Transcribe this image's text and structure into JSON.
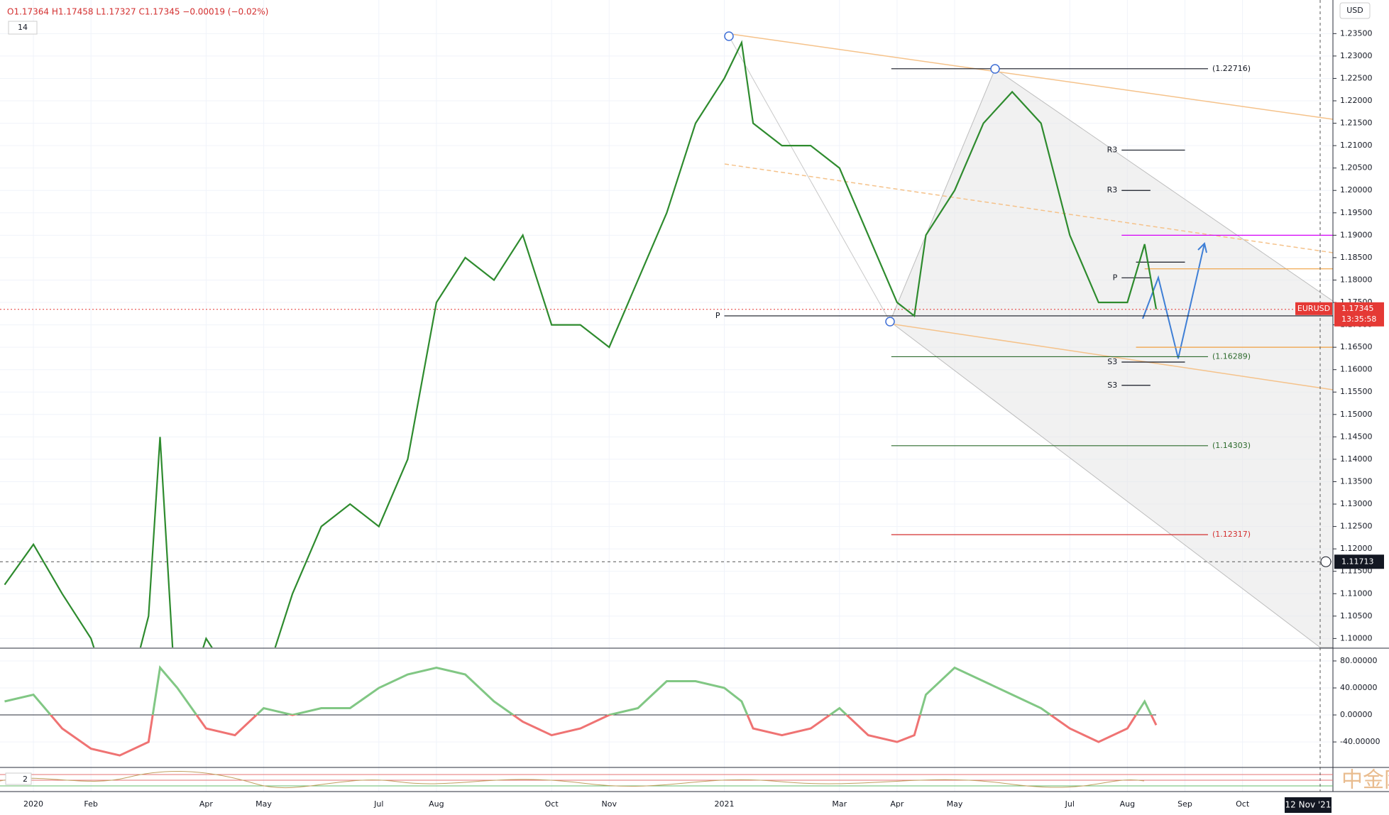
{
  "header": {
    "ohlc": "O1.17364  H1.17458  L1.17327  C1.17345  −0.00019 (−0.02%)",
    "period": "14",
    "currency": "USD",
    "indicator2": "2",
    "crosshair_date": "12 Nov '21",
    "watermark": "中金网"
  },
  "chart_data": [
    {
      "type": "line",
      "symbol": "EURUSD",
      "x": [
        -0.5,
        0,
        0.5,
        1,
        1.5,
        2,
        2.2,
        2.5,
        3,
        3.5,
        4,
        4.5,
        5,
        5.5,
        6,
        6.5,
        7,
        7.5,
        8,
        8.5,
        9,
        9.5,
        10,
        10.5,
        11,
        11.5,
        12,
        12.3,
        12.5,
        13,
        13.5,
        14,
        14.5,
        15,
        15.3,
        15.5,
        16,
        16.5,
        17,
        17.5,
        18,
        18.5,
        19,
        19.3,
        19.5
      ],
      "series": [
        {
          "color": "#2e8b2e",
          "values": [
            1.112,
            1.121,
            1.11,
            1.1,
            1.08,
            1.105,
            1.145,
            1.08,
            1.1,
            1.09,
            1.09,
            1.11,
            1.125,
            1.13,
            1.125,
            1.14,
            1.175,
            1.185,
            1.18,
            1.19,
            1.17,
            1.17,
            1.165,
            1.18,
            1.195,
            1.215,
            1.225,
            1.233,
            1.215,
            1.21,
            1.21,
            1.205,
            1.19,
            1.175,
            1.172,
            1.19,
            1.2,
            1.215,
            1.222,
            1.215,
            1.19,
            1.175,
            1.175,
            1.188,
            1.1735
          ]
        }
      ],
      "xlim": [
        -0.58,
        22.57
      ],
      "xticks": [
        {
          "value": 0,
          "label": "2020"
        },
        {
          "value": 1,
          "label": "Feb"
        },
        {
          "value": 3,
          "label": "Apr"
        },
        {
          "value": 4,
          "label": "May"
        },
        {
          "value": 6,
          "label": "Jul"
        },
        {
          "value": 7,
          "label": "Aug"
        },
        {
          "value": 9,
          "label": "Oct"
        },
        {
          "value": 10,
          "label": "Nov"
        },
        {
          "value": 12,
          "label": "2021"
        },
        {
          "value": 14,
          "label": "Mar"
        },
        {
          "value": 15,
          "label": "Apr"
        },
        {
          "value": 16,
          "label": "May"
        },
        {
          "value": 18,
          "label": "Jul"
        },
        {
          "value": 19,
          "label": "Aug"
        },
        {
          "value": 20,
          "label": "Sep"
        },
        {
          "value": 21,
          "label": "Oct"
        }
      ],
      "ylim": [
        1.098,
        1.2425
      ],
      "yticks": [
        {
          "value": 1.1,
          "label": "1.10000"
        },
        {
          "value": 1.105,
          "label": "1.10500"
        },
        {
          "value": 1.11,
          "label": "1.11000"
        },
        {
          "value": 1.115,
          "label": "1.11500"
        },
        {
          "value": 1.12,
          "label": "1.12000"
        },
        {
          "value": 1.125,
          "label": "1.12500"
        },
        {
          "value": 1.13,
          "label": "1.13000"
        },
        {
          "value": 1.135,
          "label": "1.13500"
        },
        {
          "value": 1.14,
          "label": "1.14000"
        },
        {
          "value": 1.145,
          "label": "1.14500"
        },
        {
          "value": 1.15,
          "label": "1.15000"
        },
        {
          "value": 1.155,
          "label": "1.15500"
        },
        {
          "value": 1.16,
          "label": "1.16000"
        },
        {
          "value": 1.165,
          "label": "1.16500"
        },
        {
          "value": 1.17,
          "label": "1.17000"
        },
        {
          "value": 1.175,
          "label": "1.17500"
        },
        {
          "value": 1.18,
          "label": "1.18000"
        },
        {
          "value": 1.185,
          "label": "1.18500"
        },
        {
          "value": 1.19,
          "label": "1.19000"
        },
        {
          "value": 1.195,
          "label": "1.19500"
        },
        {
          "value": 1.2,
          "label": "1.20000"
        },
        {
          "value": 1.205,
          "label": "1.20500"
        },
        {
          "value": 1.21,
          "label": "1.21000"
        },
        {
          "value": 1.215,
          "label": "1.21500"
        },
        {
          "value": 1.22,
          "label": "1.22000"
        },
        {
          "value": 1.225,
          "label": "1.22500"
        },
        {
          "value": 1.23,
          "label": "1.23000"
        },
        {
          "value": 1.235,
          "label": "1.23500"
        }
      ],
      "grid": true,
      "levels": [
        {
          "value": 1.22716,
          "label": "(1.22716)",
          "color": "#131722",
          "start": 14.9,
          "end": 20.4
        },
        {
          "value": 1.16289,
          "label": "(1.16289)",
          "color": "#2e6b2e",
          "start": 14.9,
          "end": 20.4
        },
        {
          "value": 1.14303,
          "label": "(1.14303)",
          "color": "#2e6b2e",
          "start": 14.9,
          "end": 20.4
        },
        {
          "value": 1.12317,
          "label": "(1.12317)",
          "color": "#d32f2f",
          "start": 14.9,
          "end": 20.4
        }
      ],
      "pivots": [
        {
          "label": "R3",
          "value": 1.209,
          "start": 18.9,
          "end": 20
        },
        {
          "label": "R3",
          "value": 1.2,
          "start": 18.9,
          "end": 19.4
        },
        {
          "label": "P",
          "value": 1.1805,
          "start": 18.9,
          "end": 19.4
        },
        {
          "label": "S3",
          "value": 1.1617,
          "start": 18.9,
          "end": 20
        },
        {
          "label": "S3",
          "value": 1.1565,
          "start": 18.9,
          "end": 19.4
        },
        {
          "label": "P",
          "value": 1.172,
          "start": 12,
          "end": 22.57
        }
      ],
      "lines": [
        {
          "value": 1.19,
          "color": "#d500f9",
          "start": 18.9,
          "end": 22.57
        },
        {
          "value": 1.1825,
          "color": "#f0a040",
          "start": 19.3,
          "end": 22.57
        },
        {
          "value": 1.184,
          "color": "#131722",
          "start": 19.15,
          "end": 20
        },
        {
          "value": 1.165,
          "color": "#f0a040",
          "start": 19.15,
          "end": 22.57
        }
      ],
      "last_price": 1.17345,
      "countdown": "13:35:58",
      "crosshair": 1.11713
    },
    {
      "type": "oscillator",
      "x": [
        -0.5,
        0,
        0.5,
        1,
        1.5,
        2,
        2.2,
        2.5,
        3,
        3.5,
        4,
        4.5,
        5,
        5.5,
        6,
        6.5,
        7,
        7.5,
        8,
        8.5,
        9,
        9.5,
        10,
        10.5,
        11,
        11.5,
        12,
        12.3,
        12.5,
        13,
        13.5,
        14,
        14.5,
        15,
        15.3,
        15.5,
        16,
        16.5,
        17,
        17.5,
        18,
        18.5,
        19,
        19.3,
        19.5
      ],
      "values": [
        20,
        30,
        -20,
        -50,
        -60,
        -40,
        70,
        40,
        -20,
        -30,
        10,
        0,
        10,
        10,
        40,
        60,
        70,
        60,
        20,
        -10,
        -30,
        -20,
        0,
        10,
        50,
        50,
        40,
        20,
        -20,
        -30,
        -20,
        10,
        -30,
        -40,
        -30,
        30,
        70,
        50,
        30,
        10,
        -20,
        -40,
        -20,
        20,
        -15
      ],
      "up_color": "#81c784",
      "down_color": "#ef7373",
      "xlim": [
        -0.58,
        22.57
      ],
      "ylim": [
        -76.7,
        96.8
      ],
      "yticks": [
        {
          "value": 80,
          "label": "80.00000"
        },
        {
          "value": 40,
          "label": "40.00000"
        },
        {
          "value": 0,
          "label": "0.00000"
        },
        {
          "value": -40,
          "label": "-40.00000"
        }
      ]
    }
  ]
}
